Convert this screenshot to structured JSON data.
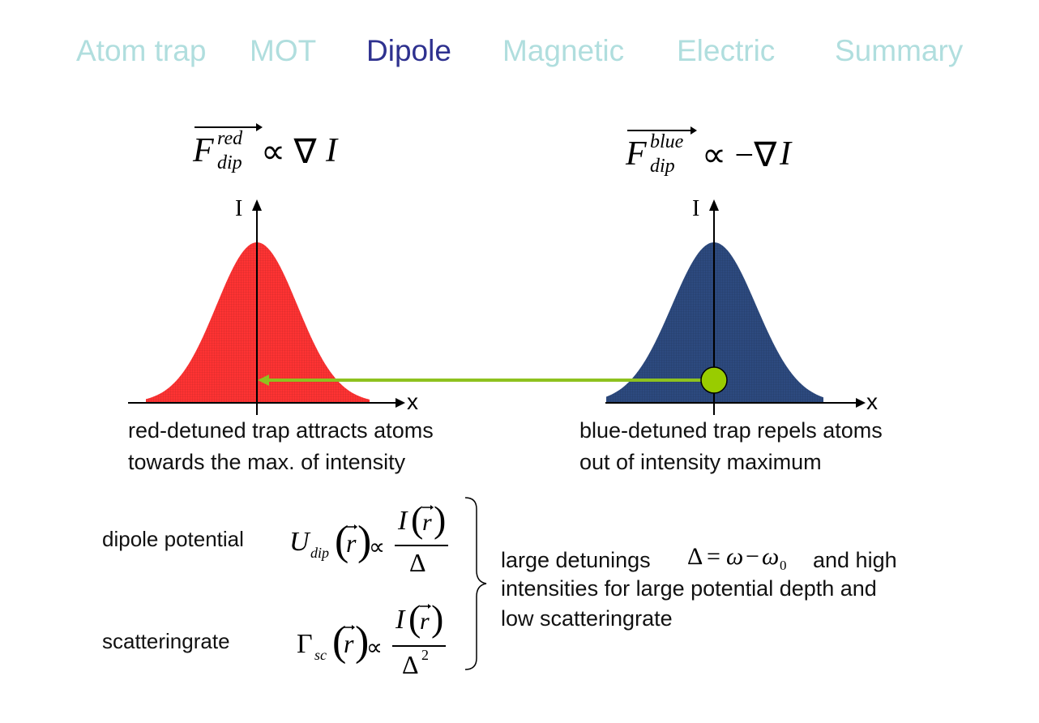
{
  "nav": {
    "items": [
      {
        "label": "Atom trap",
        "active": false
      },
      {
        "label": "MOT",
        "active": false
      },
      {
        "label": "Dipole",
        "active": true
      },
      {
        "label": "Magnetic",
        "active": false
      },
      {
        "label": "Electric",
        "active": false
      },
      {
        "label": "Summary",
        "active": false
      }
    ]
  },
  "formulas": {
    "red_force": {
      "F": "F",
      "sup": "red",
      "sub": "dip",
      "rel": "∝ ∇",
      "I": "I"
    },
    "blue_force": {
      "F": "F",
      "sup": "blue",
      "sub": "dip",
      "rel": "∝ −∇",
      "I": "I"
    },
    "dipole_potential": {
      "U": "U",
      "sub": "dip",
      "numerator": "I",
      "denominator": "Δ"
    },
    "scattering_rate": {
      "G": "Γ",
      "sub": "sc",
      "numerator": "I",
      "denominator": "Δ",
      "exp": "2"
    },
    "detuning": {
      "lhs": "Δ",
      "eq": "=",
      "w": "ω",
      "minus": "−",
      "w0": "ω",
      "zero": "0"
    }
  },
  "plots": {
    "left": {
      "y_label": "I",
      "x_label": "x",
      "fill_color": "#ff3333"
    },
    "right": {
      "y_label": "I",
      "x_label": "x",
      "fill_color": "#2d4a7f"
    },
    "atom_color": "#99cc00",
    "arrow_color": "#8ec21f"
  },
  "captions": {
    "red": "red-detuned trap attracts atoms\ntowards the max. of intensity",
    "blue": "blue-detuned trap repels atoms\nout of intensity maximum"
  },
  "labels": {
    "dipole_potential": "dipole potential",
    "scattering_rate": "scatteringrate",
    "conclusion_pre": "large detunings",
    "conclusion_post": "and high",
    "conclusion_rest": "intensities for large potential depth and\nlow scatteringrate"
  }
}
